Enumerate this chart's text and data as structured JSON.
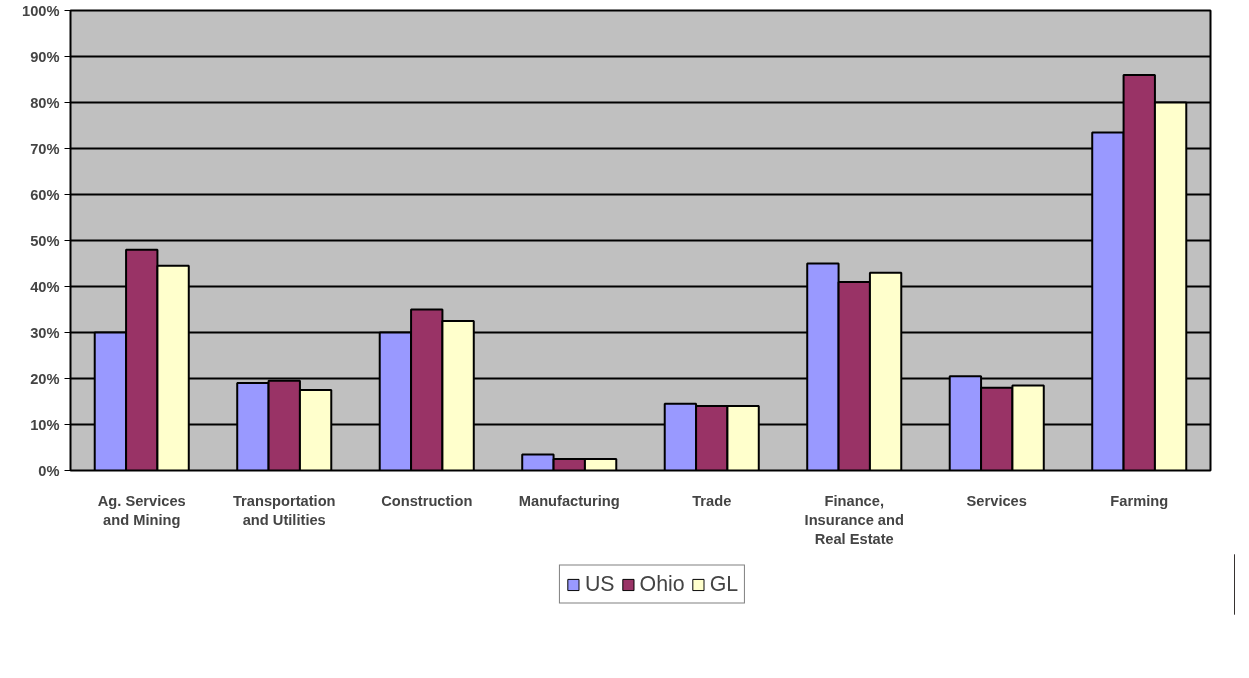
{
  "chart_data": {
    "type": "bar",
    "categories": [
      "Ag. Services and Mining",
      "Transportation and Utilities",
      "Construction",
      "Manufacturing",
      "Trade",
      "Finance, Insurance and Real Estate",
      "Services",
      "Farming"
    ],
    "series": [
      {
        "name": "US",
        "color": "#9999ff",
        "values": [
          30,
          19,
          30,
          3.5,
          14.5,
          45,
          20.5,
          73.5
        ]
      },
      {
        "name": "Ohio",
        "color": "#993366",
        "values": [
          48,
          19.5,
          35,
          2.5,
          14,
          41,
          18,
          86
        ]
      },
      {
        "name": "GL",
        "color": "#ffffcc",
        "values": [
          44.5,
          17.5,
          32.5,
          2.5,
          14,
          43,
          18.5,
          80
        ]
      }
    ],
    "ylim": [
      0,
      100
    ],
    "yticks": [
      {
        "value": 0,
        "label": "0%"
      },
      {
        "value": 10,
        "label": "10%"
      },
      {
        "value": 20,
        "label": "20%"
      },
      {
        "value": 30,
        "label": "30%"
      },
      {
        "value": 40,
        "label": "40%"
      },
      {
        "value": 50,
        "label": "50%"
      },
      {
        "value": 60,
        "label": "60%"
      },
      {
        "value": 70,
        "label": "70%"
      },
      {
        "value": 80,
        "label": "80%"
      },
      {
        "value": 90,
        "label": "90%"
      },
      {
        "value": 100,
        "label": "100%"
      }
    ],
    "grid": "y",
    "legend": "bottom"
  }
}
